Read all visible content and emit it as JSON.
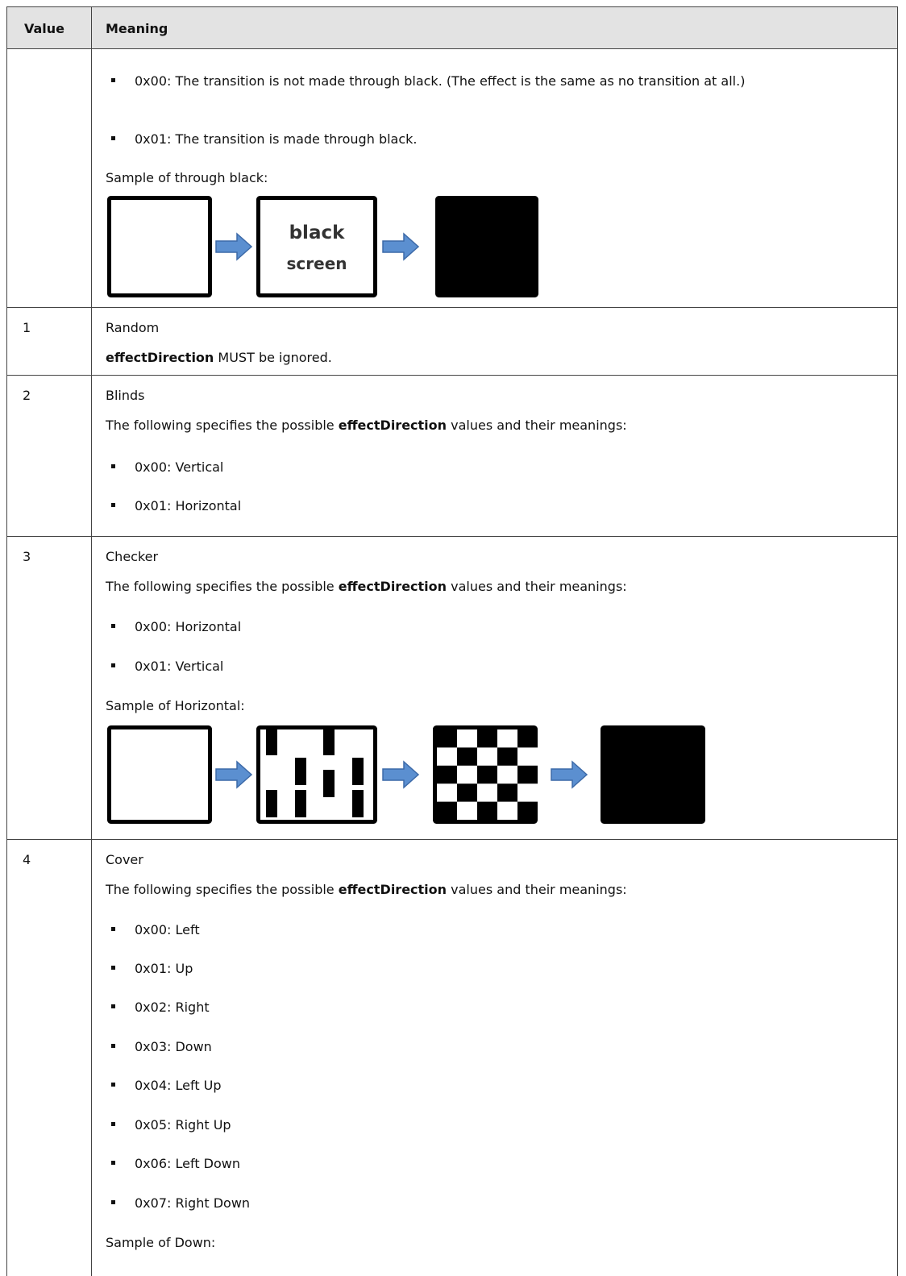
{
  "table": {
    "header": [
      "Value",
      "Meaning"
    ],
    "rows": [
      {
        "bullets": [
          "0x00: The transition is not made through black. (The effect is the same as no transition at all.)",
          "0x01: The transition is made through black."
        ],
        "sample_caption": "Sample of through black:",
        "sample_image_text": [
          "black",
          "screen"
        ]
      },
      {
        "value": 1,
        "title": "Random",
        "note": [
          "effectDirection",
          "MUST be ignored."
        ]
      },
      {
        "value": 2,
        "title": "Blinds",
        "intro": [
          "The following specifies the possible",
          "effectDirection",
          "values and their meanings:"
        ],
        "bullets": [
          "0x00: Vertical",
          "0x01: Horizontal"
        ]
      },
      {
        "value": 3,
        "title": "Checker",
        "intro": [
          "The following specifies the possible",
          "effectDirection",
          "values and their meanings:"
        ],
        "bullets": [
          "0x00: Horizontal",
          "0x01: Vertical"
        ],
        "sample_caption": "Sample of Horizontal:"
      },
      {
        "value": 4,
        "title": "Cover",
        "intro": [
          "The following specifies the possible",
          "effectDirection",
          "values and their meanings:"
        ],
        "bullets": [
          "0x00: Left",
          "0x01: Up",
          "0x02: Right",
          "0x03: Down",
          "0x04: Left Up",
          "0x05: Right Up",
          "0x06: Left Down",
          "0x07: Right Down"
        ],
        "sample_caption": "Sample of Down:"
      }
    ]
  }
}
